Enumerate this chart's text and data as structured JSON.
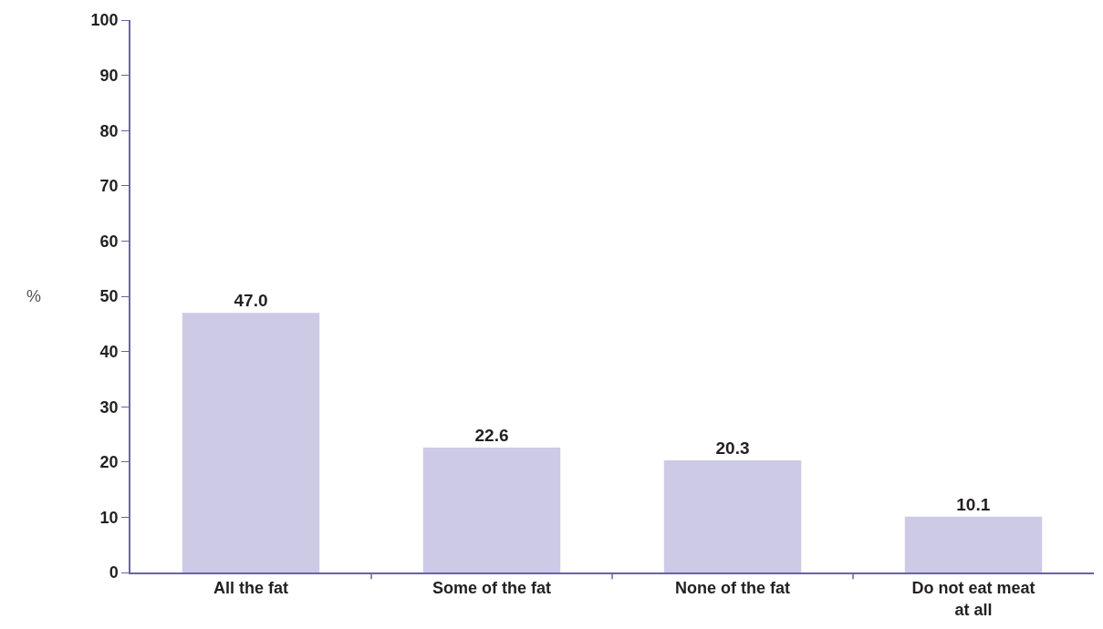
{
  "chart_data": {
    "type": "bar",
    "ylabel": "%",
    "categories": [
      "All the fat",
      "Some of the fat",
      "None of the fat",
      "Do not eat meat at all"
    ],
    "values": [
      47.0,
      22.6,
      20.3,
      10.1
    ],
    "value_labels": [
      "47.0",
      "22.6",
      "20.3",
      "10.1"
    ],
    "color": "#cdcae6",
    "ylim": [
      0,
      100
    ],
    "yticks": [
      0,
      10,
      20,
      30,
      40,
      50,
      60,
      70,
      80,
      90,
      100
    ]
  }
}
